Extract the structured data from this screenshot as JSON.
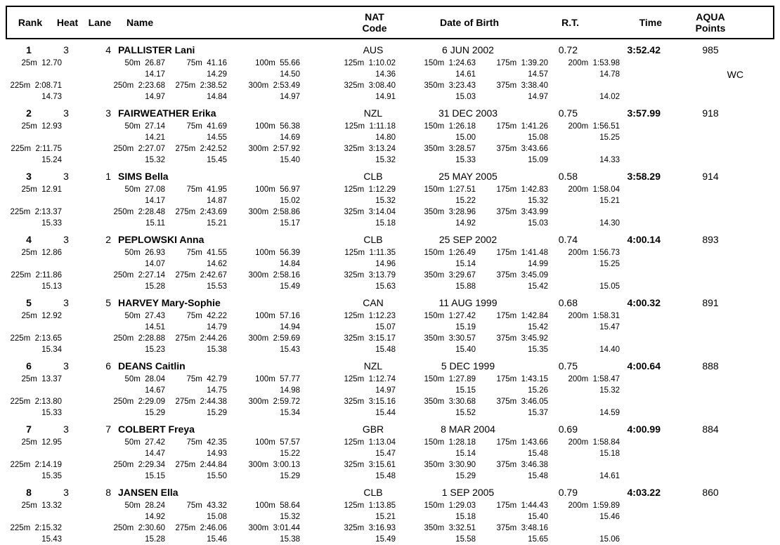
{
  "header": {
    "rank": "Rank",
    "heat": "Heat",
    "lane": "Lane",
    "name": "Name",
    "nat_line1": "NAT",
    "nat_line2": "Code",
    "dob": "Date of Birth",
    "rt": "R.T.",
    "time": "Time",
    "points_line1": "AQUA",
    "points_line2": "Points"
  },
  "split_labels_row1": [
    "25m",
    "50m",
    "75m",
    "100m",
    "125m",
    "150m",
    "175m",
    "200m"
  ],
  "split_labels_row2": [
    "225m",
    "250m",
    "275m",
    "300m",
    "325m",
    "350m",
    "375m",
    ""
  ],
  "swimmers": [
    {
      "rank": "1",
      "heat": "3",
      "lane": "4",
      "name": "PALLISTER Lani",
      "nat": "AUS",
      "dob": "6 JUN 2002",
      "rt": "0.72",
      "time": "3:52.42",
      "points": "985",
      "note": "WC",
      "times1": [
        "12.70",
        "26.87",
        "41.16",
        "55.66",
        "1:10.02",
        "1:24.63",
        "1:39.20",
        "1:53.98"
      ],
      "diffs1": [
        "",
        "14.17",
        "14.29",
        "14.50",
        "14.36",
        "14.61",
        "14.57",
        "14.78"
      ],
      "times2": [
        "2:08.71",
        "2:23.68",
        "2:38.52",
        "2:53.49",
        "3:08.40",
        "3:23.43",
        "3:38.40",
        ""
      ],
      "diffs2": [
        "14.73",
        "14.97",
        "14.84",
        "14.97",
        "14.91",
        "15.03",
        "14.97",
        "14.02"
      ]
    },
    {
      "rank": "2",
      "heat": "3",
      "lane": "3",
      "name": "FAIRWEATHER Erika",
      "nat": "NZL",
      "dob": "31 DEC 2003",
      "rt": "0.75",
      "time": "3:57.99",
      "points": "918",
      "note": "",
      "times1": [
        "12.93",
        "27.14",
        "41.69",
        "56.38",
        "1:11.18",
        "1:26.18",
        "1:41.26",
        "1:56.51"
      ],
      "diffs1": [
        "",
        "14.21",
        "14.55",
        "14.69",
        "14.80",
        "15.00",
        "15.08",
        "15.25"
      ],
      "times2": [
        "2:11.75",
        "2:27.07",
        "2:42.52",
        "2:57.92",
        "3:13.24",
        "3:28.57",
        "3:43.66",
        ""
      ],
      "diffs2": [
        "15.24",
        "15.32",
        "15.45",
        "15.40",
        "15.32",
        "15.33",
        "15.09",
        "14.33"
      ]
    },
    {
      "rank": "3",
      "heat": "3",
      "lane": "1",
      "name": "SIMS Bella",
      "nat": "CLB",
      "dob": "25 MAY 2005",
      "rt": "0.58",
      "time": "3:58.29",
      "points": "914",
      "note": "",
      "times1": [
        "12.91",
        "27.08",
        "41.95",
        "56.97",
        "1:12.29",
        "1:27.51",
        "1:42.83",
        "1:58.04"
      ],
      "diffs1": [
        "",
        "14.17",
        "14.87",
        "15.02",
        "15.32",
        "15.22",
        "15.32",
        "15.21"
      ],
      "times2": [
        "2:13.37",
        "2:28.48",
        "2:43.69",
        "2:58.86",
        "3:14.04",
        "3:28.96",
        "3:43.99",
        ""
      ],
      "diffs2": [
        "15.33",
        "15.11",
        "15.21",
        "15.17",
        "15.18",
        "14.92",
        "15.03",
        "14.30"
      ]
    },
    {
      "rank": "4",
      "heat": "3",
      "lane": "2",
      "name": "PEPLOWSKI Anna",
      "nat": "CLB",
      "dob": "25 SEP 2002",
      "rt": "0.74",
      "time": "4:00.14",
      "points": "893",
      "note": "",
      "times1": [
        "12.86",
        "26.93",
        "41.55",
        "56.39",
        "1:11.35",
        "1:26.49",
        "1:41.48",
        "1:56.73"
      ],
      "diffs1": [
        "",
        "14.07",
        "14.62",
        "14.84",
        "14.96",
        "15.14",
        "14.99",
        "15.25"
      ],
      "times2": [
        "2:11.86",
        "2:27.14",
        "2:42.67",
        "2:58.16",
        "3:13.79",
        "3:29.67",
        "3:45.09",
        ""
      ],
      "diffs2": [
        "15.13",
        "15.28",
        "15.53",
        "15.49",
        "15.63",
        "15.88",
        "15.42",
        "15.05"
      ]
    },
    {
      "rank": "5",
      "heat": "3",
      "lane": "5",
      "name": "HARVEY Mary-Sophie",
      "nat": "CAN",
      "dob": "11 AUG 1999",
      "rt": "0.68",
      "time": "4:00.32",
      "points": "891",
      "note": "",
      "times1": [
        "12.92",
        "27.43",
        "42.22",
        "57.16",
        "1:12.23",
        "1:27.42",
        "1:42.84",
        "1:58.31"
      ],
      "diffs1": [
        "",
        "14.51",
        "14.79",
        "14.94",
        "15.07",
        "15.19",
        "15.42",
        "15.47"
      ],
      "times2": [
        "2:13.65",
        "2:28.88",
        "2:44.26",
        "2:59.69",
        "3:15.17",
        "3:30.57",
        "3:45.92",
        ""
      ],
      "diffs2": [
        "15.34",
        "15.23",
        "15.38",
        "15.43",
        "15.48",
        "15.40",
        "15.35",
        "14.40"
      ]
    },
    {
      "rank": "6",
      "heat": "3",
      "lane": "6",
      "name": "DEANS Caitlin",
      "nat": "NZL",
      "dob": "5 DEC 1999",
      "rt": "0.75",
      "time": "4:00.64",
      "points": "888",
      "note": "",
      "times1": [
        "13.37",
        "28.04",
        "42.79",
        "57.77",
        "1:12.74",
        "1:27.89",
        "1:43.15",
        "1:58.47"
      ],
      "diffs1": [
        "",
        "14.67",
        "14.75",
        "14.98",
        "14.97",
        "15.15",
        "15.26",
        "15.32"
      ],
      "times2": [
        "2:13.80",
        "2:29.09",
        "2:44.38",
        "2:59.72",
        "3:15.16",
        "3:30.68",
        "3:46.05",
        ""
      ],
      "diffs2": [
        "15.33",
        "15.29",
        "15.29",
        "15.34",
        "15.44",
        "15.52",
        "15.37",
        "14.59"
      ]
    },
    {
      "rank": "7",
      "heat": "3",
      "lane": "7",
      "name": "COLBERT Freya",
      "nat": "GBR",
      "dob": "8 MAR 2004",
      "rt": "0.69",
      "time": "4:00.99",
      "points": "884",
      "note": "",
      "times1": [
        "12.95",
        "27.42",
        "42.35",
        "57.57",
        "1:13.04",
        "1:28.18",
        "1:43.66",
        "1:58.84"
      ],
      "diffs1": [
        "",
        "14.47",
        "14.93",
        "15.22",
        "15.47",
        "15.14",
        "15.48",
        "15.18"
      ],
      "times2": [
        "2:14.19",
        "2:29.34",
        "2:44.84",
        "3:00.13",
        "3:15.61",
        "3:30.90",
        "3:46.38",
        ""
      ],
      "diffs2": [
        "15.35",
        "15.15",
        "15.50",
        "15.29",
        "15.48",
        "15.29",
        "15.48",
        "14.61"
      ]
    },
    {
      "rank": "8",
      "heat": "3",
      "lane": "8",
      "name": "JANSEN Ella",
      "nat": "CLB",
      "dob": "1 SEP 2005",
      "rt": "0.79",
      "time": "4:03.22",
      "points": "860",
      "note": "",
      "times1": [
        "13.32",
        "28.24",
        "43.32",
        "58.64",
        "1:13.85",
        "1:29.03",
        "1:44.43",
        "1:59.89"
      ],
      "diffs1": [
        "",
        "14.92",
        "15.08",
        "15.32",
        "15.21",
        "15.18",
        "15.40",
        "15.46"
      ],
      "times2": [
        "2:15.32",
        "2:30.60",
        "2:46.06",
        "3:01.44",
        "3:16.93",
        "3:32.51",
        "3:48.16",
        ""
      ],
      "diffs2": [
        "15.43",
        "15.28",
        "15.46",
        "15.38",
        "15.49",
        "15.58",
        "15.65",
        "15.06"
      ]
    }
  ]
}
